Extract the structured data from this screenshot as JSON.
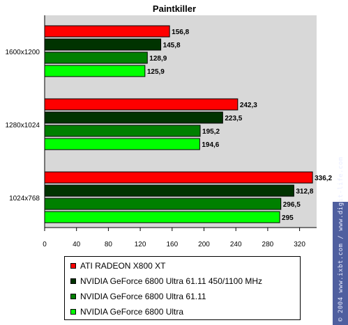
{
  "chart_data": {
    "type": "bar",
    "orientation": "horizontal",
    "title": "Paintkiller",
    "categories": [
      "1600x1200",
      "1280x1024",
      "1024x768"
    ],
    "series": [
      {
        "name": "ATI RADEON X800 XT",
        "color": "#ff0000",
        "values": [
          156.8,
          242.3,
          336.2
        ],
        "labels": [
          "156,8",
          "242,3",
          "336,2"
        ]
      },
      {
        "name": "NVIDIA GeForce 6800 Ultra 61.11 450/1100 MHz",
        "color": "#003300",
        "values": [
          145.8,
          223.5,
          312.8
        ],
        "labels": [
          "145,8",
          "223,5",
          "312,8"
        ]
      },
      {
        "name": "NVIDIA GeForce 6800 Ultra 61.11",
        "color": "#008000",
        "values": [
          128.9,
          195.2,
          296.5
        ],
        "labels": [
          "128,9",
          "195,2",
          "296,5"
        ]
      },
      {
        "name": "NVIDIA GeForce 6800 Ultra",
        "color": "#00ff00",
        "values": [
          125.9,
          194.6,
          295
        ],
        "labels": [
          "125,9",
          "194,6",
          "295"
        ]
      }
    ],
    "xlim": [
      0,
      340
    ],
    "xticks": [
      0,
      40,
      80,
      120,
      160,
      200,
      240,
      280,
      320
    ],
    "grid": false,
    "legend_position": "bottom",
    "plot_background": "#d8d8d8"
  },
  "watermark": "© 2004 www.ixbt.com / www.digit-life.com"
}
